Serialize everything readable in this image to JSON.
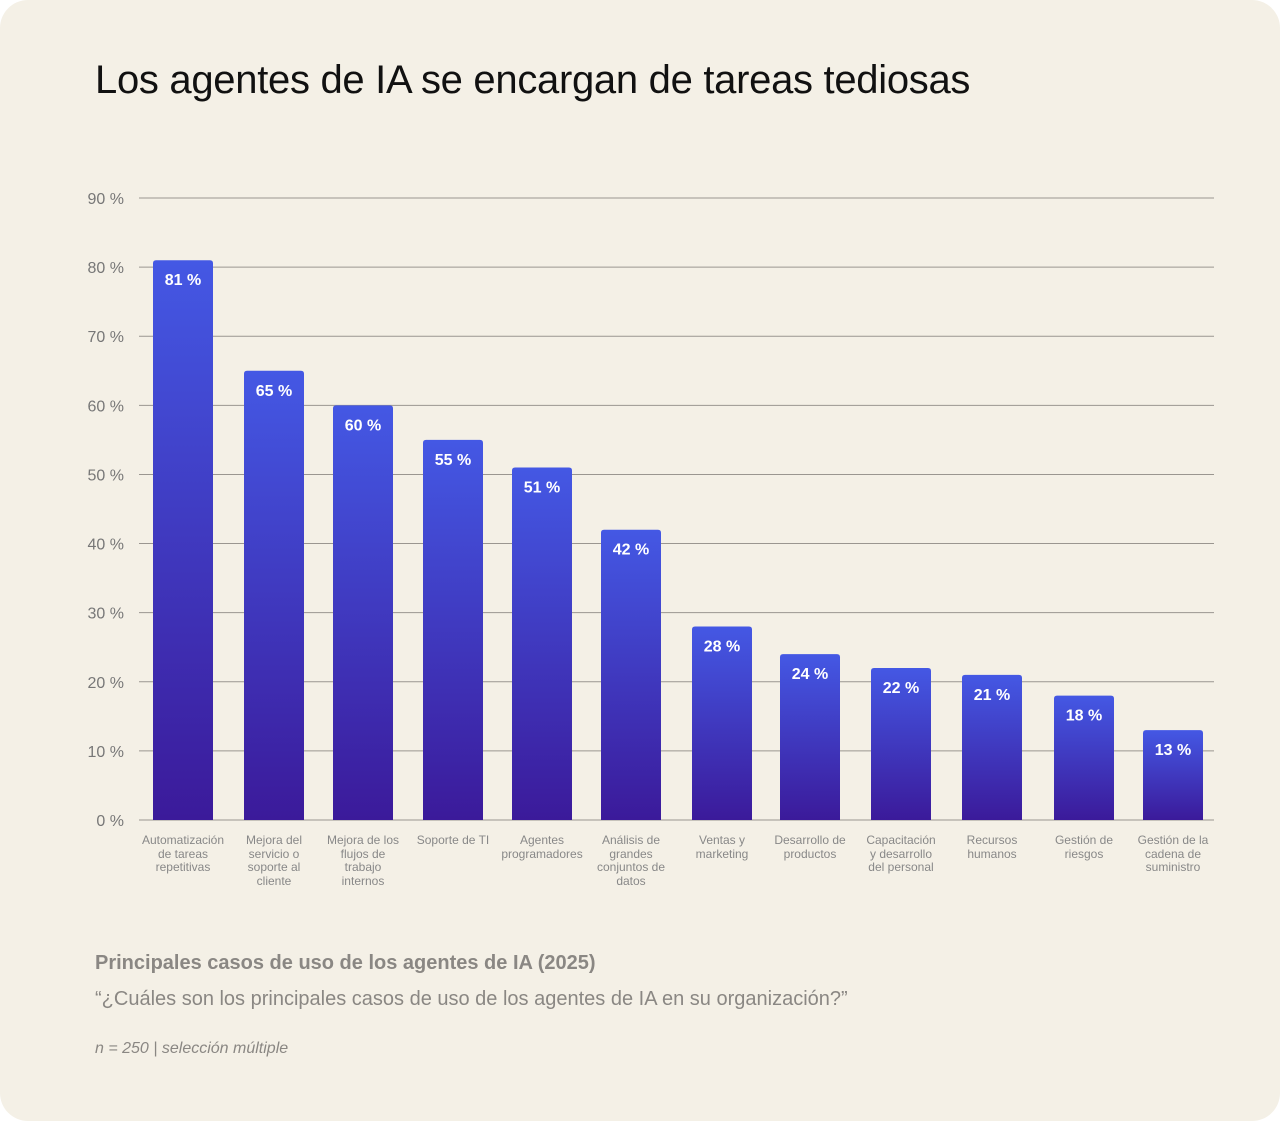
{
  "title": "Los agentes de IA se encargan de tareas tediosas",
  "subtitle": "Principales casos de uso de los agentes de IA (2025)",
  "question": "“¿Cuáles son los principales casos de uso de los agentes de IA en su organización?”",
  "note": "n = 250 | selección múltiple",
  "colors": {
    "background": "#f4f0e6",
    "bar_top": "#4458e4",
    "bar_bottom": "#3b1a9a",
    "gridline": "#9a9690"
  },
  "chart_data": {
    "type": "bar",
    "title": "Los agentes de IA se encargan de tareas tediosas",
    "categories": [
      "Automatización\nde tareas\nrepetitivas",
      "Mejora del\nservicio o\nsoporte al\ncliente",
      "Mejora de los\nflujos de\ntrabajo\ninternos",
      "Soporte de TI",
      "Agentes\nprogramadores",
      "Análisis de\ngrandes\nconjuntos de\ndatos",
      "Ventas y\nmarketing",
      "Desarrollo de\nproductos",
      "Capacitación\ny desarrollo\ndel personal",
      "Recursos\nhumanos",
      "Gestión de\nriesgos",
      "Gestión de la\ncadena de\nsuministro"
    ],
    "values": [
      81,
      65,
      60,
      55,
      51,
      42,
      28,
      24,
      22,
      21,
      18,
      13
    ],
    "data_labels": [
      "81 %",
      "65 %",
      "60 %",
      "55 %",
      "51 %",
      "42 %",
      "28 %",
      "24 %",
      "22 %",
      "21 %",
      "18 %",
      "13 %"
    ],
    "yticks": [
      "0 %",
      "10 %",
      "20 %",
      "30 %",
      "40 %",
      "50 %",
      "60 %",
      "70 %",
      "80 %",
      "90 %"
    ],
    "ylim": [
      0,
      90
    ],
    "grid": true,
    "xlabel": "",
    "ylabel": ""
  }
}
